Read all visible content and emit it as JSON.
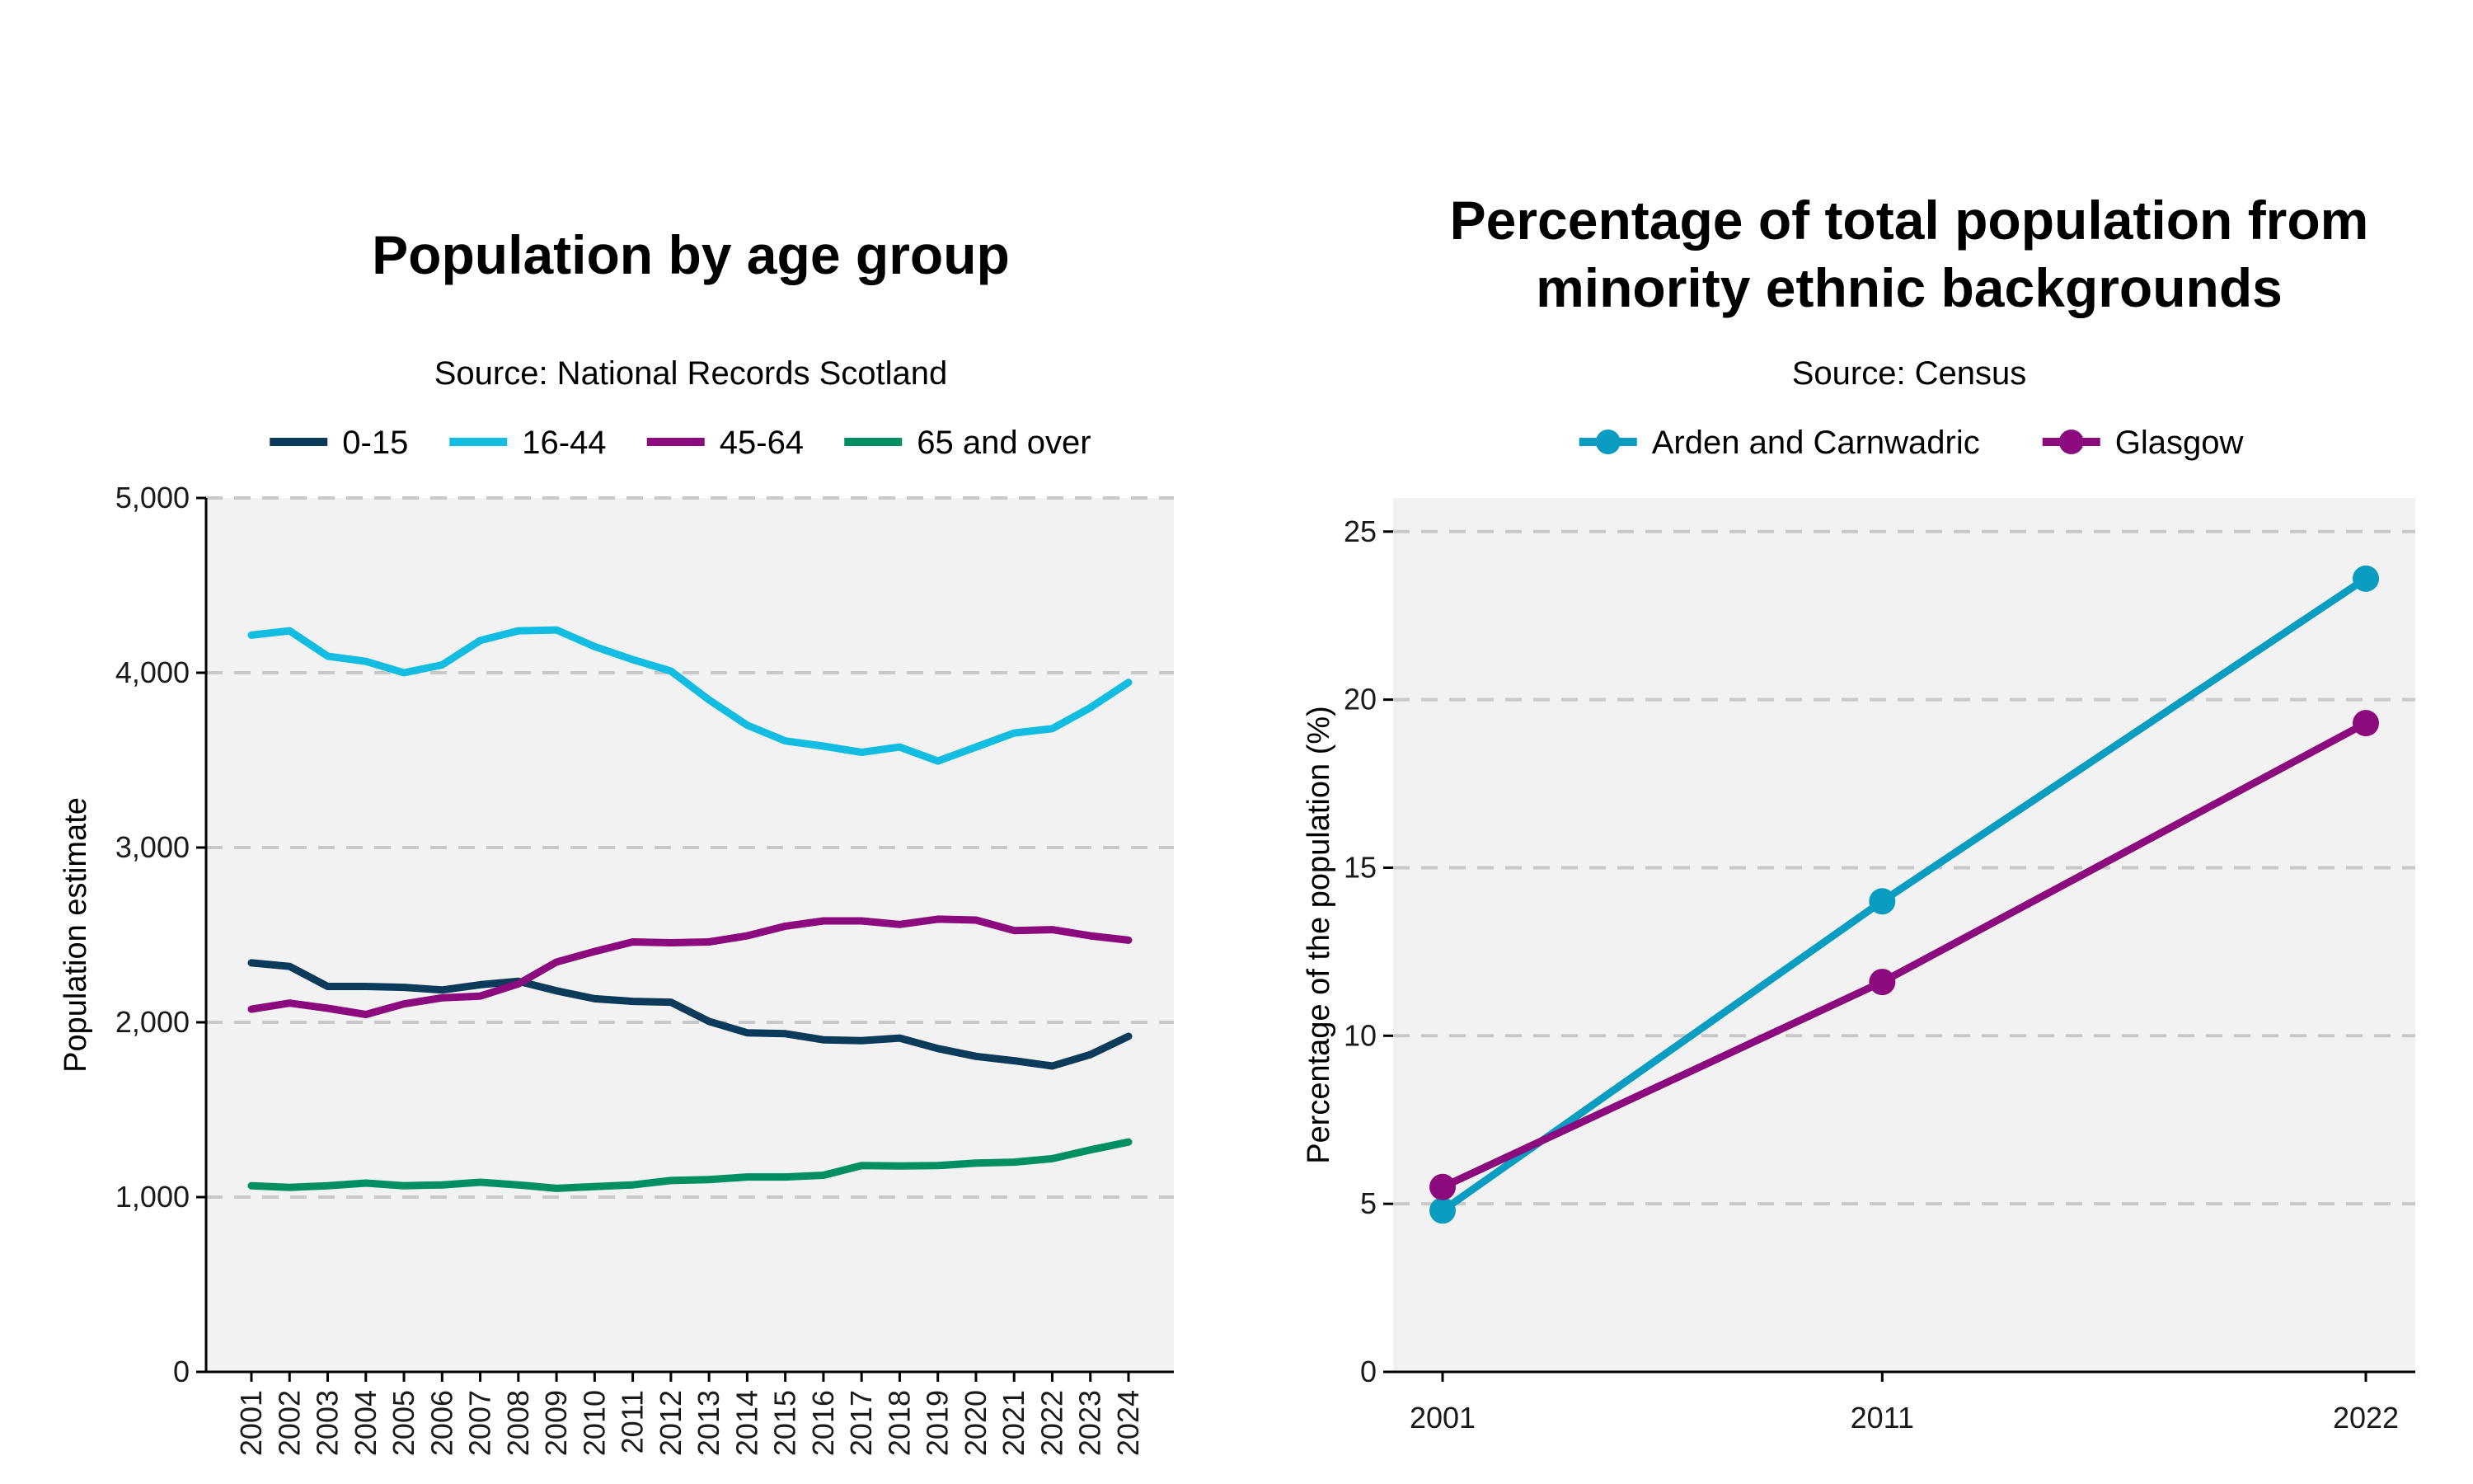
{
  "chart_data": [
    {
      "type": "line",
      "title": "Population by age group",
      "subtitle": "Source: National Records Scotland",
      "xlabel": "",
      "ylabel": "Population estimate",
      "ylim": [
        0,
        5000
      ],
      "yticks": [
        0,
        1000,
        2000,
        3000,
        4000,
        5000
      ],
      "ytick_labels": [
        "0",
        "1,000",
        "2,000",
        "3,000",
        "4,000",
        "5,000"
      ],
      "grid": "horizontal dashed",
      "legend": "top",
      "x": [
        "2001",
        "2002",
        "2003",
        "2004",
        "2005",
        "2006",
        "2007",
        "2008",
        "2009",
        "2010",
        "2011",
        "2012",
        "2013",
        "2014",
        "2015",
        "2016",
        "2017",
        "2018",
        "2019",
        "2020",
        "2021",
        "2022",
        "2023",
        "2024"
      ],
      "series": [
        {
          "name": "0-15",
          "color": "#0b3a5b",
          "values": [
            2340,
            2320,
            2205,
            2205,
            2200,
            2185,
            2215,
            2235,
            2180,
            2135,
            2120,
            2115,
            2005,
            1940,
            1935,
            1900,
            1895,
            1910,
            1850,
            1805,
            1780,
            1750,
            1815,
            1920
          ]
        },
        {
          "name": "16-44",
          "color": "#12bde1",
          "values": [
            4215,
            4240,
            4095,
            4065,
            4000,
            4045,
            4185,
            4240,
            4245,
            4150,
            4075,
            4010,
            3845,
            3700,
            3610,
            3580,
            3545,
            3575,
            3495,
            3575,
            3655,
            3680,
            3800,
            3945
          ]
        },
        {
          "name": "45-64",
          "color": "#8b0a7d",
          "values": [
            2075,
            2110,
            2080,
            2045,
            2105,
            2140,
            2150,
            2220,
            2345,
            2405,
            2460,
            2455,
            2460,
            2495,
            2550,
            2580,
            2580,
            2560,
            2590,
            2585,
            2525,
            2530,
            2495,
            2470
          ]
        },
        {
          "name": "65 and over",
          "color": "#008f63",
          "values": [
            1065,
            1055,
            1065,
            1080,
            1065,
            1070,
            1085,
            1070,
            1050,
            1060,
            1070,
            1095,
            1100,
            1115,
            1115,
            1125,
            1180,
            1178,
            1180,
            1195,
            1200,
            1220,
            1270,
            1315
          ]
        }
      ]
    },
    {
      "type": "line",
      "title": "Percentage of total population from minority ethnic backgrounds",
      "title_lines": [
        "Percentage of total population from",
        "minority ethnic backgrounds"
      ],
      "subtitle": "Source: Census",
      "xlabel": "",
      "ylabel": "Percentage of the population (%)",
      "ylim": [
        0,
        26
      ],
      "yticks": [
        0,
        5,
        10,
        15,
        20,
        25
      ],
      "ytick_labels": [
        "0",
        "5",
        "10",
        "15",
        "20",
        "25"
      ],
      "grid": "horizontal dashed",
      "legend": "top",
      "x": [
        "2001",
        "2011",
        "2022"
      ],
      "series": [
        {
          "name": "Arden and Carnwadric",
          "color": "#0a9cc1",
          "values": [
            4.8,
            14.0,
            23.6
          ]
        },
        {
          "name": "Glasgow",
          "color": "#8b0a7d",
          "values": [
            5.5,
            11.6,
            19.3
          ]
        }
      ]
    }
  ]
}
